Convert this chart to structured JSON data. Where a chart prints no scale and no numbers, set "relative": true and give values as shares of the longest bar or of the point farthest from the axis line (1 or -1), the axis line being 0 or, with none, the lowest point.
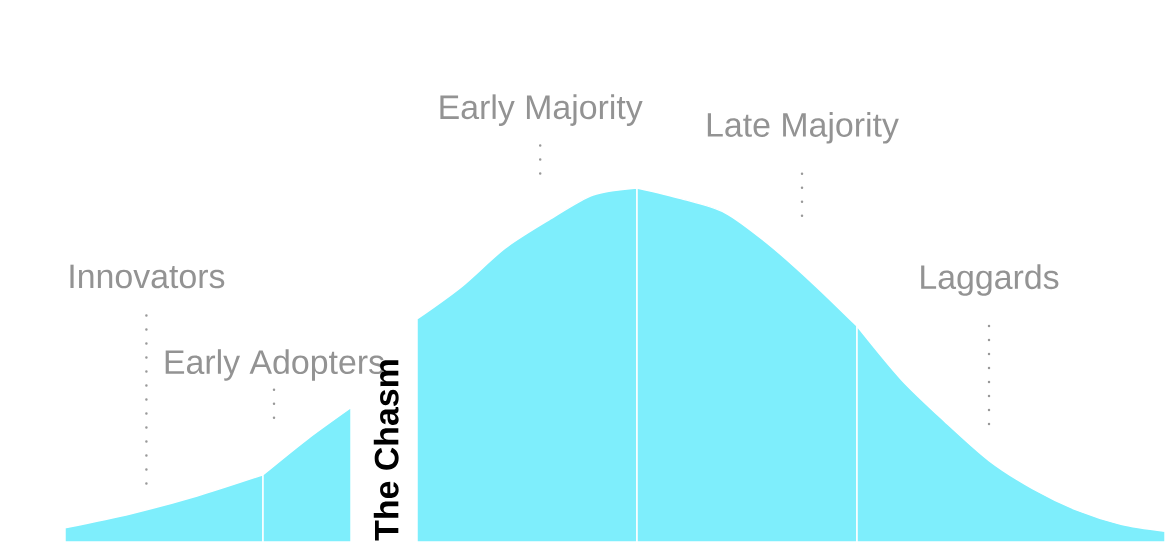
{
  "chart_data": {
    "type": "area",
    "relative": true,
    "categories": [
      null,
      null,
      null,
      null,
      null,
      null,
      null,
      null,
      null,
      null,
      null,
      null,
      null,
      null,
      null,
      null,
      null,
      null,
      null,
      null,
      null,
      null,
      null,
      null,
      null,
      null,
      null,
      null,
      null,
      null,
      null,
      null,
      null,
      null,
      null,
      null,
      null,
      null,
      null,
      null,
      null,
      null,
      null,
      null,
      null,
      null,
      null,
      null,
      null,
      null,
      null
    ],
    "series": [
      {
        "name": "Innovators",
        "color": "#7eeefc",
        "values": [
          0.04,
          null,
          null,
          0.08,
          null,
          null,
          0.13,
          null,
          null,
          0.19,
          null,
          null,
          null,
          null,
          null,
          null,
          null,
          null,
          null,
          null,
          null,
          null,
          null,
          null,
          null,
          null,
          null,
          null,
          null,
          null,
          null,
          null,
          null,
          null,
          null,
          null,
          null,
          null,
          null,
          null,
          null,
          null,
          null,
          null,
          null,
          null,
          null,
          null,
          null,
          null,
          null
        ]
      },
      {
        "name": "Early Adopters",
        "color": "#7eeefc",
        "values": [
          null,
          null,
          null,
          null,
          null,
          null,
          null,
          null,
          null,
          0.19,
          null,
          0.29,
          null,
          0.38,
          null,
          null,
          null,
          null,
          null,
          null,
          null,
          null,
          null,
          null,
          null,
          null,
          null,
          null,
          null,
          null,
          null,
          null,
          null,
          null,
          null,
          null,
          null,
          null,
          null,
          null,
          null,
          null,
          null,
          null,
          null,
          null,
          null,
          null,
          null,
          null,
          null
        ]
      },
      {
        "name": "Early Majority",
        "color": "#7eeefc",
        "values": [
          null,
          null,
          null,
          null,
          null,
          null,
          null,
          null,
          null,
          null,
          null,
          null,
          null,
          null,
          null,
          null,
          0.63,
          null,
          0.72,
          null,
          0.83,
          null,
          0.91,
          null,
          0.98,
          null,
          1.0,
          null,
          null,
          null,
          null,
          null,
          null,
          null,
          null,
          null,
          null,
          null,
          null,
          null,
          null,
          null,
          null,
          null,
          null,
          null,
          null,
          null,
          null,
          null,
          null
        ]
      },
      {
        "name": "Late Majority",
        "color": "#7eeefc",
        "values": [
          null,
          null,
          null,
          null,
          null,
          null,
          null,
          null,
          null,
          null,
          null,
          null,
          null,
          null,
          null,
          null,
          null,
          null,
          null,
          null,
          null,
          null,
          null,
          null,
          null,
          null,
          1.0,
          null,
          0.97,
          null,
          0.93,
          null,
          0.84,
          null,
          0.73,
          null,
          0.61,
          null,
          null,
          null,
          null,
          null,
          null,
          null,
          null,
          null,
          null,
          null,
          null,
          null,
          null
        ]
      },
      {
        "name": "Laggards",
        "color": "#7eeefc",
        "values": [
          null,
          null,
          null,
          null,
          null,
          null,
          null,
          null,
          null,
          null,
          null,
          null,
          null,
          null,
          null,
          null,
          null,
          null,
          null,
          null,
          null,
          null,
          null,
          null,
          null,
          null,
          null,
          null,
          null,
          null,
          null,
          null,
          null,
          null,
          null,
          null,
          0.61,
          null,
          0.46,
          null,
          0.34,
          null,
          0.23,
          null,
          0.15,
          null,
          0.09,
          null,
          0.05,
          null,
          0.03
        ]
      }
    ],
    "annotations": [
      "The Chasm"
    ]
  }
}
